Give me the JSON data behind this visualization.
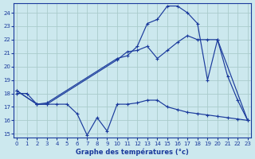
{
  "title": "Graphe des températures (°c)",
  "bg_color": "#cce8ee",
  "grid_color": "#aacccc",
  "line_color": "#1a3a9c",
  "xlim": [
    -0.3,
    23.3
  ],
  "ylim": [
    14.7,
    24.7
  ],
  "xticks": [
    0,
    1,
    2,
    3,
    4,
    5,
    6,
    7,
    8,
    9,
    10,
    11,
    12,
    13,
    14,
    15,
    16,
    17,
    18,
    19,
    20,
    21,
    22,
    23
  ],
  "yticks": [
    15,
    16,
    17,
    18,
    19,
    20,
    21,
    22,
    23,
    24
  ],
  "line1_x": [
    0,
    1,
    2,
    3,
    4,
    5,
    6,
    7,
    8,
    9,
    10,
    11,
    12,
    13,
    14,
    15,
    16,
    17,
    18,
    19,
    20,
    21,
    22,
    23
  ],
  "line1_y": [
    18.0,
    18.0,
    17.2,
    17.2,
    17.2,
    17.2,
    16.5,
    14.9,
    16.2,
    15.2,
    17.2,
    17.2,
    17.3,
    17.5,
    17.5,
    17.0,
    16.8,
    16.6,
    16.5,
    16.4,
    16.3,
    16.2,
    16.1,
    16.0
  ],
  "line2_x": [
    0,
    2,
    3,
    10,
    11,
    12,
    13,
    14,
    15,
    16,
    17,
    18,
    19,
    20,
    23
  ],
  "line2_y": [
    18.2,
    17.2,
    17.2,
    20.5,
    21.1,
    21.2,
    21.5,
    20.6,
    21.2,
    21.8,
    22.3,
    22.0,
    22.0,
    22.0,
    16.0
  ],
  "line3_x": [
    0,
    2,
    3,
    10,
    11,
    12,
    13,
    14,
    15,
    16,
    17,
    18,
    19,
    20,
    21,
    22,
    23
  ],
  "line3_y": [
    18.2,
    17.2,
    17.3,
    20.6,
    20.8,
    21.5,
    23.2,
    23.5,
    24.5,
    24.5,
    24.0,
    23.2,
    19.0,
    22.0,
    19.3,
    17.5,
    16.0
  ]
}
